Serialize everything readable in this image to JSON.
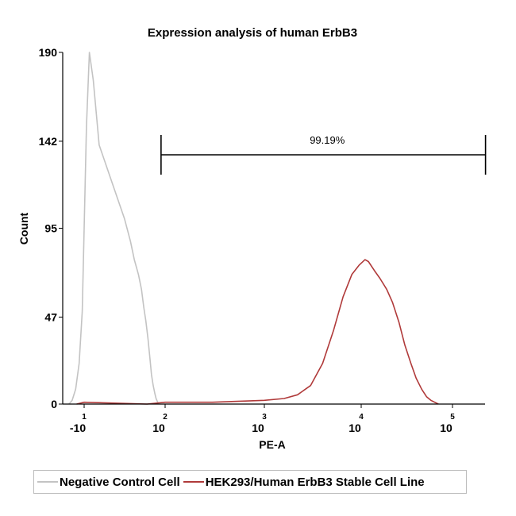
{
  "chart_data": {
    "type": "line",
    "title": "Expression analysis of human ErbB3",
    "xlabel": "PE-A",
    "ylabel": "Count",
    "x_scale": "biexponential",
    "y_ticks": [
      0,
      47,
      95,
      142,
      190
    ],
    "ylim": [
      0,
      190
    ],
    "x_ticks": [
      {
        "base": "-10",
        "exp": "1",
        "value": -10
      },
      {
        "base": "10",
        "exp": "2",
        "value": 100
      },
      {
        "base": "10",
        "exp": "3",
        "value": 1000
      },
      {
        "base": "10",
        "exp": "4",
        "value": 10000
      },
      {
        "base": "10",
        "exp": "5",
        "value": 100000
      }
    ],
    "gate": {
      "label": "99.19%",
      "x_start": 70,
      "x_end": 230000
    },
    "series": [
      {
        "name": "Negative Control Cell",
        "color": "#c3c3c3",
        "points": [
          [
            -40,
            0
          ],
          [
            -30,
            2
          ],
          [
            -22,
            8
          ],
          [
            -16,
            22
          ],
          [
            -12,
            50
          ],
          [
            -10,
            95
          ],
          [
            -8,
            150
          ],
          [
            -6,
            190
          ],
          [
            -4,
            175
          ],
          [
            -2,
            140
          ],
          [
            0,
            120
          ],
          [
            2,
            100
          ],
          [
            4,
            88
          ],
          [
            6,
            78
          ],
          [
            9,
            70
          ],
          [
            12,
            62
          ],
          [
            15,
            52
          ],
          [
            18,
            45
          ],
          [
            22,
            35
          ],
          [
            26,
            25
          ],
          [
            30,
            16
          ],
          [
            35,
            10
          ],
          [
            40,
            6
          ],
          [
            45,
            3
          ],
          [
            52,
            1
          ],
          [
            60,
            0
          ]
        ]
      },
      {
        "name": "HEK293/Human ErbB3 Stable Cell Line",
        "color": "#b03a3a",
        "points": [
          [
            -20,
            0
          ],
          [
            -10,
            1
          ],
          [
            20,
            0
          ],
          [
            100,
            1
          ],
          [
            300,
            1
          ],
          [
            1000,
            2
          ],
          [
            1600,
            3
          ],
          [
            2200,
            5
          ],
          [
            3000,
            10
          ],
          [
            4000,
            22
          ],
          [
            5200,
            40
          ],
          [
            6500,
            58
          ],
          [
            8000,
            70
          ],
          [
            9500,
            75
          ],
          [
            11000,
            78
          ],
          [
            12000,
            77
          ],
          [
            14000,
            72
          ],
          [
            16000,
            68
          ],
          [
            19000,
            62
          ],
          [
            22000,
            55
          ],
          [
            26000,
            44
          ],
          [
            30000,
            32
          ],
          [
            35000,
            22
          ],
          [
            40000,
            14
          ],
          [
            46000,
            8
          ],
          [
            52000,
            4
          ],
          [
            58000,
            2
          ],
          [
            70000,
            0
          ]
        ]
      }
    ],
    "legend": {
      "placement": "bottom"
    }
  }
}
